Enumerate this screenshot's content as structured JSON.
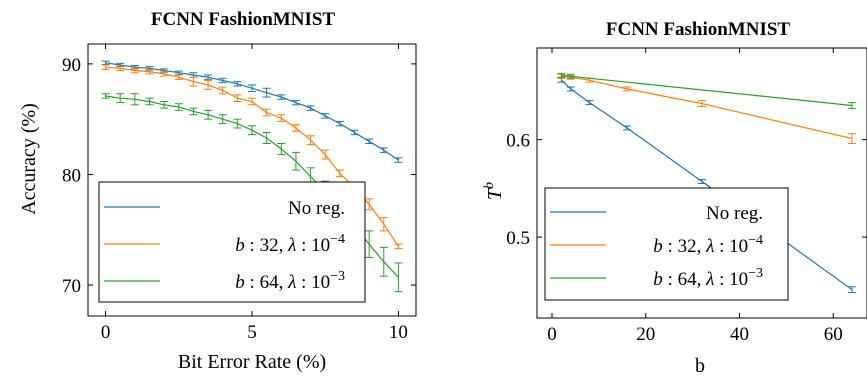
{
  "colors": {
    "blue": "#1f77b4",
    "orange": "#ff7f0e",
    "green": "#2ca02c"
  },
  "chart_data": [
    {
      "type": "line",
      "title": "FCNN FashionMNIST",
      "xlabel": "Bit Error Rate (%)",
      "ylabel": "Accuracy (%)",
      "xlim": [
        -0.6,
        10.6
      ],
      "ylim": [
        67.2,
        91.8
      ],
      "xticks": [
        0,
        5,
        10
      ],
      "yticks": [
        70,
        80,
        90
      ],
      "grid": false,
      "legend_position": "bottom-left",
      "legend_entries": [
        "No reg.",
        "b : 32, λ : 10−4",
        "b : 64, λ : 10−3"
      ],
      "series": [
        {
          "name": "No reg.",
          "color": "#1f77b4",
          "x": [
            0,
            0.5,
            1,
            1.5,
            2,
            2.5,
            3,
            3.5,
            4,
            4.5,
            5,
            5.5,
            6,
            6.5,
            7,
            7.5,
            8,
            8.5,
            9,
            9.5,
            10
          ],
          "y": [
            90.1,
            89.9,
            89.7,
            89.6,
            89.4,
            89.2,
            89.0,
            88.8,
            88.5,
            88.2,
            87.8,
            87.4,
            87.0,
            86.5,
            86.0,
            85.3,
            84.6,
            83.8,
            83.0,
            82.2,
            81.3
          ],
          "err": [
            0.15,
            0.15,
            0.15,
            0.15,
            0.15,
            0.15,
            0.2,
            0.2,
            0.2,
            0.2,
            0.3,
            0.4,
            0.2,
            0.2,
            0.2,
            0.2,
            0.2,
            0.2,
            0.2,
            0.2,
            0.2
          ]
        },
        {
          "name": "b : 32, λ : 10−4",
          "color": "#ff7f0e",
          "x": [
            0,
            0.5,
            1,
            1.5,
            2,
            2.5,
            3,
            3.5,
            4,
            4.5,
            5,
            5.5,
            6,
            6.5,
            7,
            7.5,
            8,
            8.5,
            9,
            9.5,
            10
          ],
          "y": [
            89.7,
            89.6,
            89.4,
            89.3,
            89.1,
            88.8,
            88.4,
            88.1,
            87.6,
            86.9,
            86.6,
            85.6,
            85.1,
            84.2,
            83.1,
            81.8,
            80.1,
            78.8,
            77.3,
            75.5,
            73.5
          ],
          "err": [
            0.2,
            0.2,
            0.2,
            0.2,
            0.2,
            0.2,
            0.4,
            0.4,
            0.3,
            0.3,
            0.3,
            0.3,
            0.3,
            0.3,
            0.4,
            0.4,
            0.3,
            0.5,
            0.5,
            0.6,
            0.2
          ]
        },
        {
          "name": "b : 64, λ : 10−3",
          "color": "#2ca02c",
          "x": [
            0,
            0.5,
            1,
            1.5,
            2,
            2.5,
            3,
            3.5,
            4,
            4.5,
            5,
            5.5,
            6,
            6.5,
            7,
            7.5,
            8,
            8.5,
            9,
            9.5,
            10
          ],
          "y": [
            87.1,
            86.9,
            86.8,
            86.6,
            86.3,
            86.1,
            85.7,
            85.4,
            85.0,
            84.6,
            84.0,
            83.3,
            82.3,
            81.2,
            79.8,
            78.5,
            77.0,
            75.4,
            73.7,
            72.1,
            70.7
          ],
          "err": [
            0.2,
            0.4,
            0.5,
            0.3,
            0.3,
            0.3,
            0.3,
            0.4,
            0.4,
            0.4,
            0.4,
            0.5,
            0.5,
            0.8,
            0.8,
            0.9,
            1.0,
            1.2,
            1.2,
            1.3,
            1.3
          ]
        }
      ]
    },
    {
      "type": "line",
      "title": "FCNN FashionMNIST",
      "xlabel": "b",
      "ylabel": "T^b",
      "ylabel_base": "T",
      "ylabel_sup": "b",
      "xlim": [
        -3.2,
        67.2
      ],
      "ylim": [
        0.417,
        0.694
      ],
      "xticks": [
        0,
        20,
        40,
        60
      ],
      "yticks": [
        0.5,
        0.6
      ],
      "grid": false,
      "legend_position": "bottom-left",
      "legend_entries": [
        "No reg.",
        "b : 32, λ : 10−4",
        "b : 64, λ : 10−3"
      ],
      "series": [
        {
          "name": "No reg.",
          "color": "#1f77b4",
          "x": [
            2,
            4,
            8,
            16,
            32,
            64
          ],
          "y": [
            0.661,
            0.652,
            0.638,
            0.612,
            0.557,
            0.446
          ],
          "err": [
            0.002,
            0.002,
            0.002,
            0.002,
            0.002,
            0.003
          ]
        },
        {
          "name": "b : 32, λ : 10−4",
          "color": "#ff7f0e",
          "x": [
            2,
            4,
            8,
            16,
            32,
            64
          ],
          "y": [
            0.665,
            0.664,
            0.661,
            0.652,
            0.637,
            0.601
          ],
          "err": [
            0.002,
            0.002,
            0.002,
            0.002,
            0.003,
            0.005
          ]
        },
        {
          "name": "b : 64, λ : 10−3",
          "color": "#2ca02c",
          "x": [
            2,
            4,
            64
          ],
          "y": [
            0.666,
            0.665,
            0.635
          ],
          "err": [
            0.002,
            0.002,
            0.003
          ]
        }
      ]
    }
  ]
}
